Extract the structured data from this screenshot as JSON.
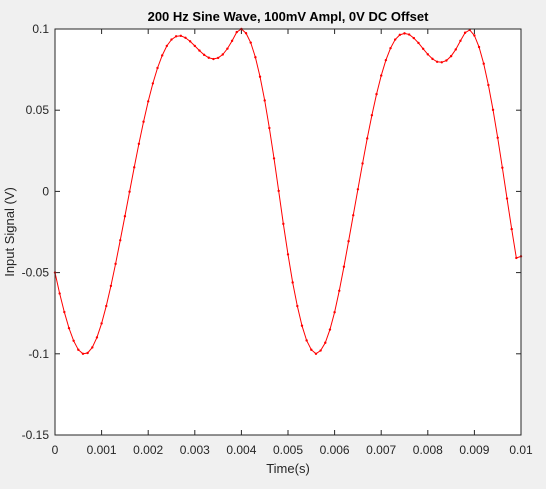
{
  "colors": {
    "figure_background": "#f0f0f0",
    "axes_background": "#ffffff",
    "axis": "#262626",
    "series": "#ff0000"
  },
  "chart_data": {
    "type": "line",
    "title": "200 Hz Sine Wave, 100mV Ampl, 0V DC Offset",
    "xlabel": "Time(s)",
    "ylabel": "Input Signal (V)",
    "xlim": [
      0,
      0.01
    ],
    "ylim": [
      -0.15,
      0.1
    ],
    "xticks": [
      0,
      0.001,
      0.002,
      0.003,
      0.004,
      0.005,
      0.006,
      0.007,
      0.008,
      0.009,
      0.01
    ],
    "xtick_labels": [
      "0",
      "0.001",
      "0.002",
      "0.003",
      "0.004",
      "0.005",
      "0.006",
      "0.007",
      "0.008",
      "0.009",
      "0.01"
    ],
    "yticks": [
      -0.15,
      -0.1,
      -0.05,
      0,
      0.05,
      0.1
    ],
    "ytick_labels": [
      "-0.15",
      "-0.1",
      "-0.05",
      "0",
      "0.05",
      "0.1"
    ],
    "grid": false,
    "box": true,
    "marker": "dot",
    "series": [
      {
        "color": "#ff0000",
        "x": [
          0,
          0.0001,
          0.0002,
          0.0003,
          0.0004,
          0.0005,
          0.0006,
          0.0007,
          0.0008,
          0.0009,
          0.001,
          0.0011,
          0.0012,
          0.0013,
          0.0014,
          0.0015,
          0.0016,
          0.0017,
          0.0018,
          0.0019,
          0.002,
          0.0021,
          0.0022,
          0.0023,
          0.0024,
          0.0025,
          0.0026,
          0.0027,
          0.0028,
          0.0029,
          0.003,
          0.0031,
          0.0032,
          0.0033,
          0.0034,
          0.0035,
          0.0036,
          0.0037,
          0.0038,
          0.0039,
          0.004,
          0.0041,
          0.0042,
          0.0043,
          0.0044,
          0.0045,
          0.0046,
          0.0047,
          0.0048,
          0.0049,
          0.005,
          0.0051,
          0.0052,
          0.0053,
          0.0054,
          0.0055,
          0.0056,
          0.0057,
          0.0058,
          0.0059,
          0.006,
          0.0061,
          0.0062,
          0.0063,
          0.0064,
          0.0065,
          0.0066,
          0.0067,
          0.0068,
          0.0069,
          0.007,
          0.0071,
          0.0072,
          0.0073,
          0.0074,
          0.0075,
          0.0076,
          0.0077,
          0.0078,
          0.0079,
          0.008,
          0.0081,
          0.0082,
          0.0083,
          0.0084,
          0.0085,
          0.0086,
          0.0087,
          0.0088,
          0.0089,
          0.009,
          0.0091,
          0.0092,
          0.0093,
          0.0094,
          0.0095,
          0.0096,
          0.0097,
          0.0098,
          0.0099,
          0.01
        ],
        "y": [
          -0.05,
          -0.0629,
          -0.0743,
          -0.0842,
          -0.092,
          -0.0975,
          -0.1,
          -0.0995,
          -0.0961,
          -0.0899,
          -0.0813,
          -0.0706,
          -0.0582,
          -0.0446,
          -0.0301,
          -0.0153,
          -0.0002,
          0.0148,
          0.0293,
          0.0429,
          0.0554,
          0.0665,
          0.076,
          0.0837,
          0.0896,
          0.0935,
          0.0955,
          0.0958,
          0.0946,
          0.0924,
          0.0896,
          0.0867,
          0.0841,
          0.0823,
          0.0815,
          0.0822,
          0.0843,
          0.0879,
          0.0927,
          0.0981,
          0.1,
          0.0974,
          0.0916,
          0.0826,
          0.0706,
          0.056,
          0.039,
          0.0203,
          0.0003,
          -0.02,
          -0.0388,
          -0.0561,
          -0.0706,
          -0.0827,
          -0.0918,
          -0.0975,
          -0.1,
          -0.098,
          -0.0932,
          -0.0851,
          -0.0744,
          -0.0612,
          -0.0464,
          -0.0307,
          -0.0147,
          0.0013,
          0.0172,
          0.0326,
          0.0469,
          0.0599,
          0.0713,
          0.0808,
          0.0882,
          0.0935,
          0.0964,
          0.0973,
          0.0966,
          0.0944,
          0.0914,
          0.0878,
          0.0844,
          0.0816,
          0.0798,
          0.0795,
          0.0806,
          0.0833,
          0.0874,
          0.0927,
          0.0977,
          0.0994,
          0.096,
          0.0889,
          0.0786,
          0.0655,
          0.0502,
          0.033,
          0.0146,
          -0.0044,
          -0.0232,
          -0.041,
          -0.04
        ]
      }
    ]
  }
}
